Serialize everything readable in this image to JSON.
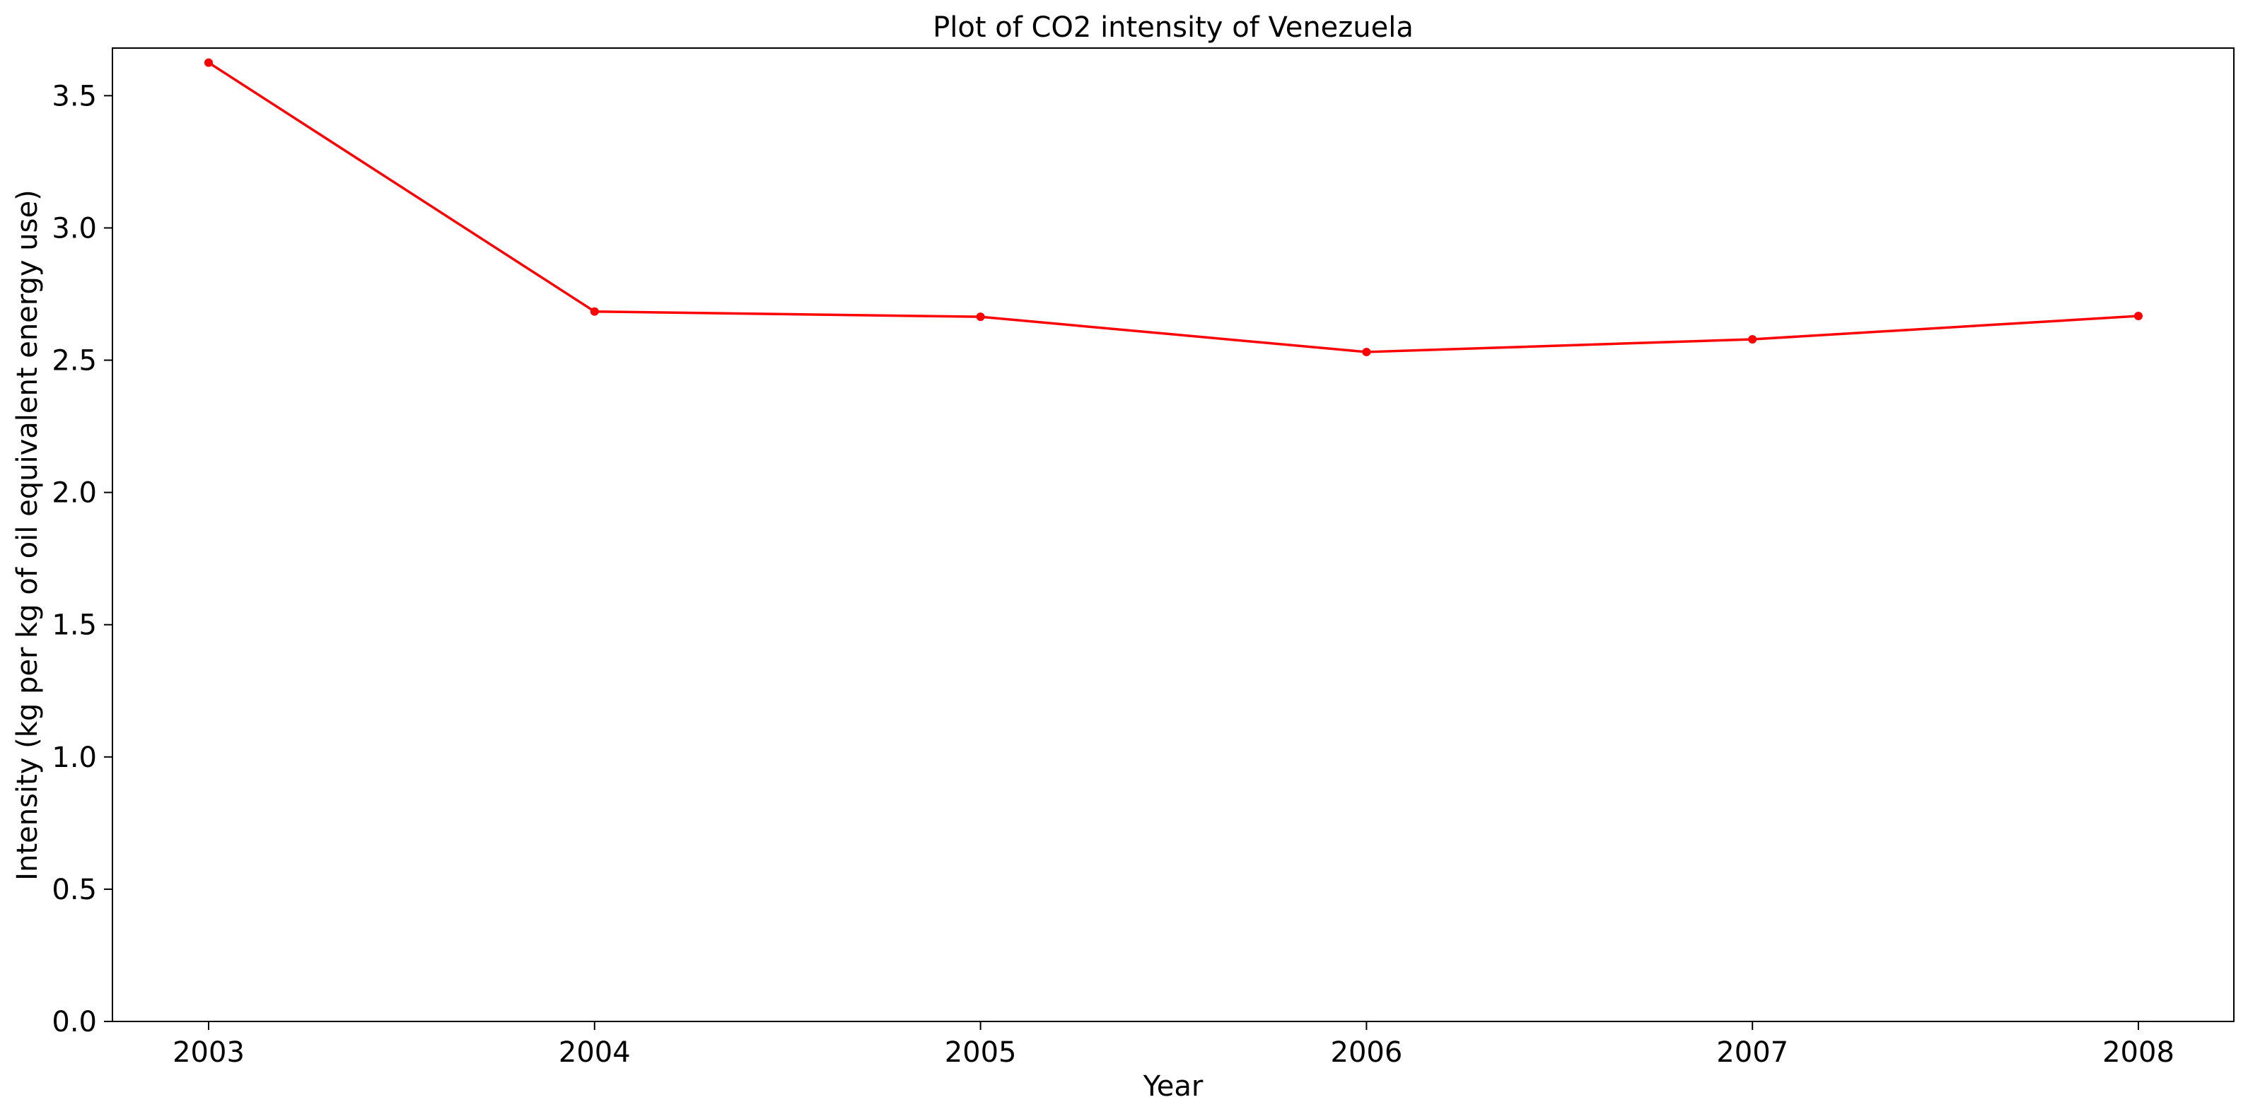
{
  "chart_data": {
    "type": "line",
    "title": "Plot of CO2 intensity of Venezuela",
    "xlabel": "Year",
    "ylabel": "Intensity (kg per kg of oil equivalent energy use)",
    "x": [
      "2003",
      "2004",
      "2005",
      "2006",
      "2007",
      "2008"
    ],
    "series": [
      {
        "values": [
          3.625,
          2.684,
          2.664,
          2.531,
          2.579,
          2.667
        ],
        "color": "#ff0000",
        "marker": "dot"
      }
    ],
    "xticks": [
      "2003",
      "2004",
      "2005",
      "2006",
      "2007",
      "2008"
    ],
    "yticks": [
      "0.0",
      "0.5",
      "1.0",
      "1.5",
      "2.0",
      "2.5",
      "3.0",
      "3.5"
    ],
    "ylim": [
      0,
      3.68
    ],
    "grid": false,
    "legend": "none"
  }
}
